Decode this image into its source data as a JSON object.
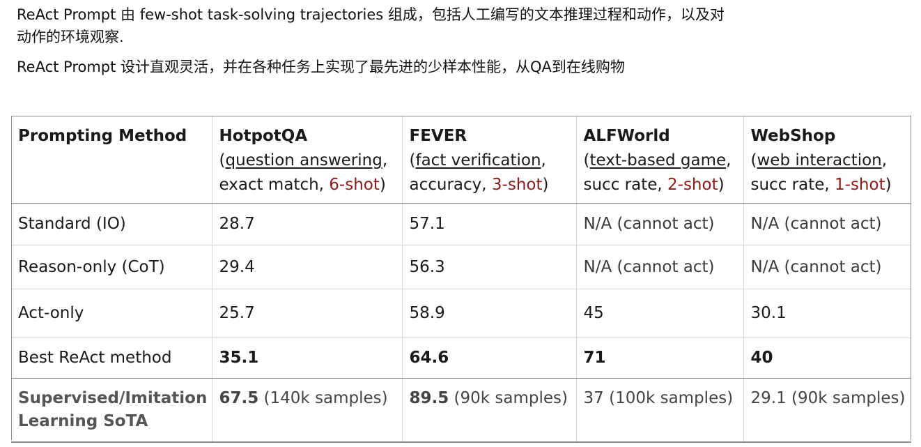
{
  "intro": {
    "line1": "ReAct Prompt 由 few-shot task-solving trajectories 组成，包括人工编写的文本推理过程和动作，以及对",
    "line2": "动作的环境观察.",
    "line3": "ReAct Prompt 设计直观灵活，并在各种任务上实现了最先进的少样本性能，从QA到在线购物"
  },
  "table": {
    "method_header": "Prompting Method",
    "columns": [
      {
        "name": "HotpotQA",
        "open": "(",
        "task": "question answering",
        "comma": ",",
        "metric": "exact match, ",
        "shots": "6-shot",
        "close": ")"
      },
      {
        "name": "FEVER",
        "open": "(",
        "task": "fact verification",
        "comma": ",",
        "metric": "accuracy, ",
        "shots": "3-shot",
        "close": ")"
      },
      {
        "name": "ALFWorld",
        "open": "(",
        "task": "text-based game",
        "comma": ",",
        "metric": "succ rate, ",
        "shots": "2-shot",
        "close": ")"
      },
      {
        "name": "WebShop",
        "open": "(",
        "task": "web interaction",
        "comma": ",",
        "metric": "succ rate, ",
        "shots": "1-shot",
        "close": ")"
      }
    ],
    "rows": [
      {
        "method": "Standard (IO)",
        "values": [
          "28.7",
          "57.1",
          "N/A (cannot act)",
          "N/A (cannot act)"
        ]
      },
      {
        "method": "Reason-only (CoT)",
        "values": [
          "29.4",
          "56.3",
          "N/A (cannot act)",
          "N/A (cannot act)"
        ]
      },
      {
        "method": "Act-only",
        "values": [
          "25.7",
          "58.9",
          "45",
          "30.1"
        ]
      },
      {
        "method": "Best ReAct method",
        "values": [
          "35.1",
          "64.6",
          "71",
          "40"
        ]
      }
    ],
    "sota": {
      "label": "Supervised/Imitation Learning SoTA",
      "cells": [
        {
          "value": "67.5",
          "note": " (140k samples)"
        },
        {
          "value": "89.5",
          "note": " (90k samples)"
        },
        {
          "value": "37",
          "note": " (100k samples)"
        },
        {
          "value": "29.1",
          "note": " (90k samples)"
        }
      ]
    }
  },
  "colors": {
    "shots_red": "#8b1a1a",
    "rule": "#8c8c8c",
    "light_rule": "#d6d6d6"
  }
}
